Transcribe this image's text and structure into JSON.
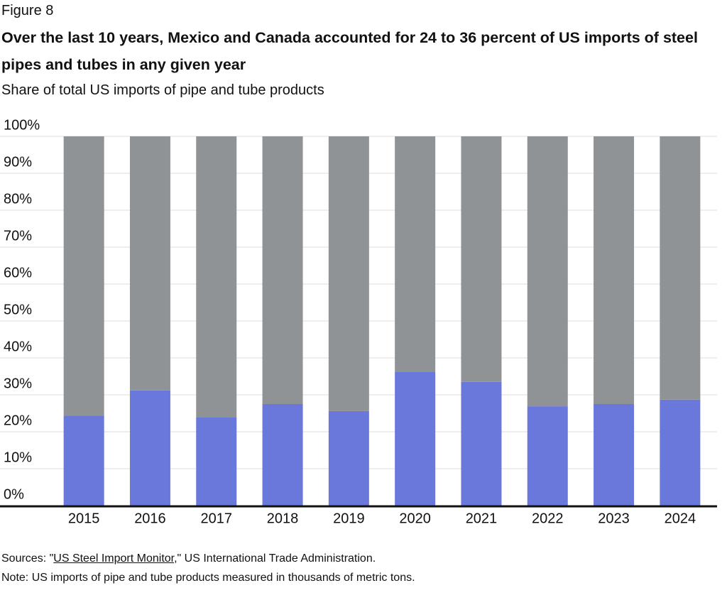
{
  "chart_data": {
    "type": "stacked_bar",
    "figure_label": "Figure 8",
    "title": "Over the last 10 years, Mexico and Canada accounted for 24 to 36 percent of US imports of steel pipes and tubes in any given year",
    "subtitle": "Share of total US imports of pipe and tube products",
    "categories": [
      "2015",
      "2016",
      "2017",
      "2018",
      "2019",
      "2020",
      "2021",
      "2022",
      "2023",
      "2024"
    ],
    "series": [
      {
        "color": "#6a78dc",
        "values": [
          24.4,
          31.2,
          24.0,
          27.5,
          25.6,
          36.3,
          33.5,
          26.9,
          27.5,
          28.7
        ]
      },
      {
        "color": "#909396",
        "values": [
          75.6,
          68.8,
          76.0,
          72.5,
          74.4,
          63.7,
          66.5,
          73.1,
          72.5,
          71.3
        ]
      }
    ],
    "ylim": [
      0,
      100
    ],
    "yticks": [
      {
        "value": 0,
        "label": "0%"
      },
      {
        "value": 10,
        "label": "10%"
      },
      {
        "value": 20,
        "label": "20%"
      },
      {
        "value": 30,
        "label": "30%"
      },
      {
        "value": 40,
        "label": "40%"
      },
      {
        "value": 50,
        "label": "50%"
      },
      {
        "value": 60,
        "label": "60%"
      },
      {
        "value": 70,
        "label": "70%"
      },
      {
        "value": 80,
        "label": "80%"
      },
      {
        "value": 90,
        "label": "90%"
      },
      {
        "value": 100,
        "label": "100%"
      }
    ],
    "grid": true,
    "sources": {
      "prefix": "Sources: \"",
      "link": "US Steel Import Monitor",
      "suffix": ",\" US International Trade Administration."
    },
    "note": "Note: US imports of pipe and tube products measured in thousands of metric tons."
  }
}
